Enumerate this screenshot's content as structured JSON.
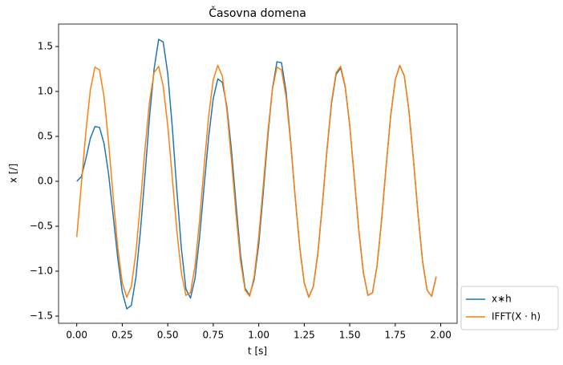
{
  "chart_data": {
    "type": "line",
    "title": "Časovna domena",
    "xlabel": "t [s]",
    "ylabel": "x [/]",
    "x": [
      0,
      0.025,
      0.05,
      0.075,
      0.1,
      0.125,
      0.15,
      0.175,
      0.2,
      0.225,
      0.25,
      0.275,
      0.3,
      0.325,
      0.35,
      0.375,
      0.4,
      0.425,
      0.45,
      0.475,
      0.5,
      0.525,
      0.55,
      0.575,
      0.6,
      0.625,
      0.65,
      0.675,
      0.7,
      0.725,
      0.75,
      0.775,
      0.8,
      0.825,
      0.85,
      0.875,
      0.9,
      0.925,
      0.95,
      0.975,
      1,
      1.025,
      1.05,
      1.075,
      1.1,
      1.125,
      1.15,
      1.175,
      1.2,
      1.225,
      1.25,
      1.275,
      1.3,
      1.325,
      1.35,
      1.375,
      1.4,
      1.425,
      1.45,
      1.475,
      1.5,
      1.525,
      1.55,
      1.575,
      1.6,
      1.625,
      1.65,
      1.675,
      1.7,
      1.725,
      1.75,
      1.775,
      1.8,
      1.825,
      1.85,
      1.875,
      1.9,
      1.925,
      1.95,
      1.975
    ],
    "series": [
      {
        "name": "x∗h",
        "color": "#1f77b4",
        "values": [
          0,
          0.05,
          0.25,
          0.48,
          0.61,
          0.6,
          0.42,
          0.08,
          -0.38,
          -0.85,
          -1.23,
          -1.42,
          -1.38,
          -1.07,
          -0.55,
          0.07,
          0.72,
          1.25,
          1.58,
          1.55,
          1.2,
          0.6,
          -0.1,
          -0.75,
          -1.2,
          -1.3,
          -1.08,
          -0.62,
          -0.05,
          0.5,
          0.92,
          1.14,
          1.1,
          0.83,
          0.35,
          -0.25,
          -0.82,
          -1.19,
          -1.27,
          -1.09,
          -0.7,
          -0.12,
          0.5,
          1.03,
          1.33,
          1.32,
          1,
          0.45,
          -0.17,
          -0.73,
          -1.13,
          -1.29,
          -1.17,
          -0.8,
          -0.25,
          0.35,
          0.87,
          1.19,
          1.26,
          1.05,
          0.62,
          0.04,
          -0.55,
          -1.02,
          -1.27,
          -1.24,
          -0.94,
          -0.43,
          0.17,
          0.73,
          1.13,
          1.29,
          1.17,
          0.79,
          0.24,
          -0.36,
          -0.89,
          -1.21,
          -1.28,
          -1.06
        ]
      },
      {
        "name": "IFFT(X · h)",
        "color": "#ff7f0e",
        "values": [
          -0.62,
          -0.04,
          0.55,
          1.02,
          1.27,
          1.24,
          0.94,
          0.43,
          -0.17,
          -0.73,
          -1.13,
          -1.29,
          -1.17,
          -0.79,
          -0.24,
          0.36,
          0.89,
          1.21,
          1.28,
          1.06,
          0.62,
          0.04,
          -0.55,
          -1.02,
          -1.27,
          -1.24,
          -0.94,
          -0.43,
          0.17,
          0.73,
          1.13,
          1.29,
          1.17,
          0.79,
          0.24,
          -0.36,
          -0.89,
          -1.21,
          -1.28,
          -1.06,
          -0.62,
          -0.04,
          0.55,
          1.02,
          1.27,
          1.24,
          0.94,
          0.43,
          -0.17,
          -0.73,
          -1.13,
          -1.29,
          -1.17,
          -0.79,
          -0.24,
          0.36,
          0.89,
          1.21,
          1.28,
          1.06,
          0.62,
          0.04,
          -0.55,
          -1.02,
          -1.27,
          -1.24,
          -0.94,
          -0.43,
          0.17,
          0.73,
          1.13,
          1.29,
          1.17,
          0.79,
          0.24,
          -0.36,
          -0.89,
          -1.21,
          -1.28,
          -1.06
        ]
      }
    ],
    "xlim": [
      -0.1,
      2.09
    ],
    "ylim": [
      -1.58,
      1.75
    ],
    "xticks": [
      {
        "value": 0,
        "label": "0.00"
      },
      {
        "value": 0.25,
        "label": "0.25"
      },
      {
        "value": 0.5,
        "label": "0.50"
      },
      {
        "value": 0.75,
        "label": "0.75"
      },
      {
        "value": 1,
        "label": "1.00"
      },
      {
        "value": 1.25,
        "label": "1.25"
      },
      {
        "value": 1.5,
        "label": "1.50"
      },
      {
        "value": 1.75,
        "label": "1.75"
      },
      {
        "value": 2,
        "label": "2.00"
      }
    ],
    "yticks": [
      {
        "value": -1.5,
        "label": "−1.5"
      },
      {
        "value": -1,
        "label": "−1.0"
      },
      {
        "value": -0.5,
        "label": "−0.5"
      },
      {
        "value": 0,
        "label": "0.0"
      },
      0.5,
      {
        "value": 1,
        "label": "1.0"
      },
      1.5
    ],
    "grid": false,
    "legend": "outside-lower-right"
  }
}
